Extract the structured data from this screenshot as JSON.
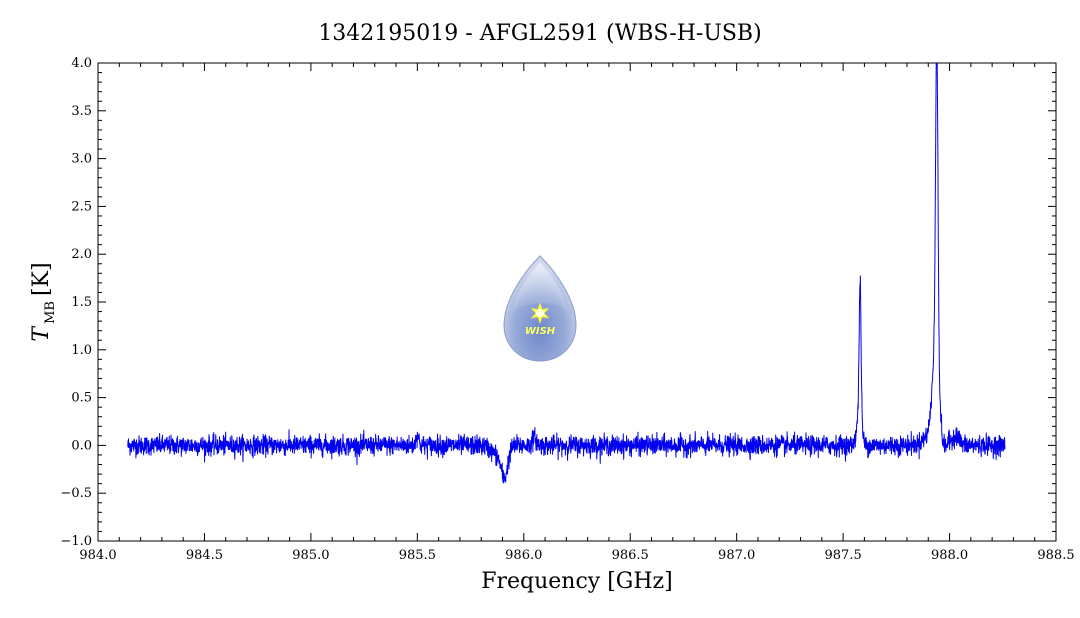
{
  "chart_data": {
    "type": "line",
    "title": "1342195019 - AFGL2591 (WBS-H-USB)",
    "xlabel": "Frequency [GHz]",
    "ylabel_main": "T",
    "ylabel_sub": "MB",
    "ylabel_unit": "[K]",
    "xlim": [
      984.0,
      988.5
    ],
    "ylim": [
      -1.0,
      4.0
    ],
    "x_ticks": [
      "984.0",
      "984.5",
      "985.0",
      "985.5",
      "986.0",
      "986.5",
      "987.0",
      "987.5",
      "988.0",
      "988.5"
    ],
    "y_ticks": [
      "−1.0",
      "−0.5",
      "0.0",
      "0.5",
      "1.0",
      "1.5",
      "2.0",
      "2.5",
      "3.0",
      "3.5",
      "4.0"
    ],
    "x_tick_values": [
      984.0,
      984.5,
      985.0,
      985.5,
      986.0,
      986.5,
      987.0,
      987.5,
      988.0,
      988.5
    ],
    "y_tick_values": [
      -1.0,
      -0.5,
      0.0,
      0.5,
      1.0,
      1.5,
      2.0,
      2.5,
      3.0,
      3.5,
      4.0
    ],
    "grid": false,
    "series": [
      {
        "color": "#0000ee",
        "x_range": [
          984.14,
          988.26
        ],
        "noise_rms": 0.05,
        "features": [
          {
            "center": 985.5,
            "peak": 0.12,
            "width": 0.006
          },
          {
            "center": 985.91,
            "peak": -0.28,
            "width": 0.015
          },
          {
            "center": 985.88,
            "peak": -0.1,
            "width": 0.03
          },
          {
            "center": 986.05,
            "peak": 0.08,
            "width": 0.01
          },
          {
            "center": 987.58,
            "peak": 1.45,
            "width": 0.0045
          },
          {
            "center": 987.575,
            "peak": 0.3,
            "width": 0.012
          },
          {
            "center": 987.94,
            "peak": 3.35,
            "width": 0.0055
          },
          {
            "center": 987.935,
            "peak": 0.9,
            "width": 0.015
          },
          {
            "center": 987.93,
            "peak": 0.15,
            "width": 0.04
          },
          {
            "center": 987.97,
            "peak": -0.12,
            "width": 0.012
          },
          {
            "center": 988.03,
            "peak": 0.1,
            "width": 0.015
          }
        ]
      }
    ]
  },
  "logo": {
    "text": "WISH",
    "icon": "water-drop-star-icon",
    "colors": {
      "drop": "#8fa3d6",
      "drop_light": "#d6def2",
      "star": "#ffff40"
    }
  }
}
